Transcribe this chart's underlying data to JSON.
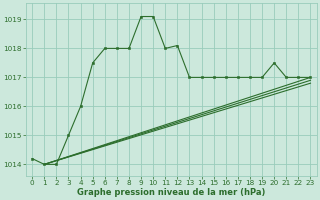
{
  "bg_color": "#cce8dc",
  "grid_color": "#99ccbb",
  "line_color": "#2d6e2d",
  "marker_color": "#2d6e2d",
  "xlabel": "Graphe pression niveau de la mer (hPa)",
  "ylim": [
    1013.6,
    1019.55
  ],
  "xlim": [
    -0.5,
    23.5
  ],
  "yticks": [
    1014,
    1015,
    1016,
    1017,
    1018,
    1019
  ],
  "xticks": [
    0,
    1,
    2,
    3,
    4,
    5,
    6,
    7,
    8,
    9,
    10,
    11,
    12,
    13,
    14,
    15,
    16,
    17,
    18,
    19,
    20,
    21,
    22,
    23
  ],
  "main_x": [
    0,
    1,
    2,
    3,
    4,
    5,
    6,
    7,
    8,
    9,
    10,
    11,
    12,
    13,
    14,
    15,
    16,
    17,
    18,
    19,
    20,
    21,
    22,
    23
  ],
  "main_y": [
    1014.2,
    1014.0,
    1014.0,
    1015.0,
    1016.0,
    1017.5,
    1018.0,
    1018.0,
    1018.0,
    1019.1,
    1019.1,
    1018.0,
    1018.1,
    1017.0,
    1017.0,
    1017.0,
    1017.0,
    1017.0,
    1017.0,
    1017.0,
    1017.5,
    1017.0,
    1017.0,
    1017.0
  ],
  "line2_x": [
    1,
    23
  ],
  "line2_y": [
    1014.0,
    1017.0
  ],
  "line3_x": [
    1,
    23
  ],
  "line3_y": [
    1014.0,
    1016.9
  ],
  "line4_x": [
    1,
    23
  ],
  "line4_y": [
    1014.0,
    1016.8
  ]
}
